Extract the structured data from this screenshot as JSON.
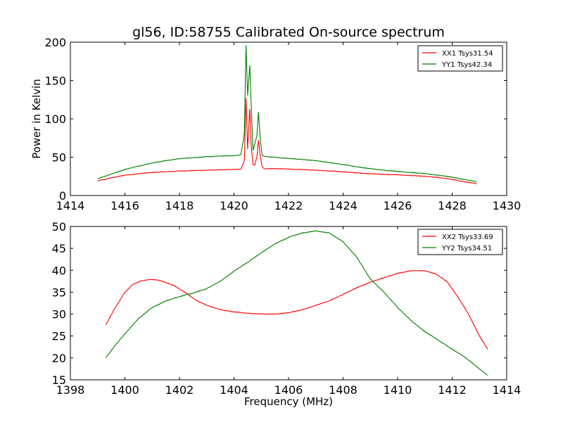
{
  "figure": {
    "title": "gl56, ID:58755 Calibrated On-source spectrum",
    "ylabel": "Power in Kelvin",
    "xlabel": "Frequency (MHz)"
  },
  "chart_data": [
    {
      "type": "line",
      "title": "gl56, ID:58755 Calibrated On-source spectrum",
      "xlabel": "",
      "ylabel": "Power in Kelvin",
      "xlim": [
        1414,
        1430
      ],
      "ylim": [
        0,
        200
      ],
      "xticks": [
        1414,
        1416,
        1418,
        1420,
        1422,
        1424,
        1426,
        1428,
        1430
      ],
      "yticks": [
        0,
        50,
        100,
        150,
        200
      ],
      "grid": false,
      "legend_position": "top-right",
      "series": [
        {
          "name": "XX1 Tsys31.54",
          "color": "#ff0000",
          "x": [
            1415.0,
            1415.5,
            1416.0,
            1416.5,
            1417.0,
            1417.5,
            1418.0,
            1418.5,
            1419.0,
            1419.5,
            1420.0,
            1420.25,
            1420.38,
            1420.44,
            1420.5,
            1420.54,
            1420.58,
            1420.63,
            1420.7,
            1420.76,
            1420.84,
            1420.9,
            1420.96,
            1421.03,
            1421.1,
            1421.3,
            1421.6,
            1422.0,
            1422.5,
            1423.0,
            1423.5,
            1424.0,
            1424.5,
            1425.0,
            1425.5,
            1426.0,
            1426.5,
            1427.0,
            1427.5,
            1428.0,
            1428.5,
            1428.9
          ],
          "y": [
            19,
            23,
            26.5,
            28.5,
            30,
            31,
            32,
            32.5,
            33,
            33.5,
            34,
            34.5,
            45,
            128,
            60,
            88,
            113,
            65,
            40,
            40,
            50,
            73,
            52,
            38,
            35,
            35,
            35,
            34.5,
            34,
            33,
            32,
            31,
            29.5,
            28.5,
            27.5,
            27,
            26,
            25,
            23.5,
            21,
            17.5,
            15.5
          ]
        },
        {
          "name": "YY1 Tsys42.34",
          "color": "#008000",
          "x": [
            1415.0,
            1415.5,
            1416.0,
            1416.5,
            1417.0,
            1417.5,
            1418.0,
            1418.5,
            1419.0,
            1419.5,
            1420.0,
            1420.25,
            1420.38,
            1420.44,
            1420.5,
            1420.54,
            1420.58,
            1420.63,
            1420.7,
            1420.76,
            1420.84,
            1420.9,
            1420.96,
            1421.03,
            1421.1,
            1421.3,
            1421.6,
            1422.0,
            1422.5,
            1423.0,
            1423.5,
            1424.0,
            1424.5,
            1425.0,
            1425.5,
            1426.0,
            1426.5,
            1427.0,
            1427.5,
            1428.0,
            1428.5,
            1428.9
          ],
          "y": [
            22,
            28,
            34,
            38.5,
            42.5,
            45.5,
            48,
            49.5,
            50.5,
            51.5,
            52,
            53,
            80,
            197,
            130,
            150,
            170,
            118,
            58,
            67,
            78,
            110,
            75,
            53,
            51,
            50.5,
            49.5,
            48.5,
            47,
            45.5,
            43,
            40.5,
            37.5,
            35,
            33,
            31.5,
            30,
            28.5,
            26.5,
            24,
            20.5,
            18
          ]
        }
      ]
    },
    {
      "type": "line",
      "title": "",
      "xlabel": "Frequency (MHz)",
      "ylabel": "",
      "xlim": [
        1398,
        1414
      ],
      "ylim": [
        15,
        50
      ],
      "xticks": [
        1398,
        1400,
        1402,
        1404,
        1406,
        1408,
        1410,
        1412,
        1414
      ],
      "yticks": [
        15,
        20,
        25,
        30,
        35,
        40,
        45,
        50
      ],
      "grid": false,
      "legend_position": "top-right",
      "series": [
        {
          "name": "XX2 Tsys33.69",
          "color": "#ff0000",
          "x": [
            1399.3,
            1399.6,
            1400.0,
            1400.3,
            1400.6,
            1400.9,
            1401.2,
            1401.5,
            1401.8,
            1402.2,
            1402.6,
            1403.0,
            1403.5,
            1404.0,
            1404.5,
            1405.0,
            1405.5,
            1406.0,
            1406.5,
            1407.0,
            1407.5,
            1408.0,
            1408.5,
            1409.0,
            1409.5,
            1410.0,
            1410.5,
            1411.0,
            1411.4,
            1411.8,
            1412.2,
            1412.6,
            1413.0,
            1413.3
          ],
          "y": [
            27.5,
            31,
            35,
            36.8,
            37.6,
            37.9,
            37.8,
            37.2,
            36.5,
            35,
            33.2,
            32,
            31,
            30.5,
            30.2,
            30,
            30,
            30.3,
            31,
            32,
            33,
            34.5,
            36,
            37.3,
            38.3,
            39.3,
            39.9,
            39.9,
            39.2,
            37.5,
            34,
            30,
            25,
            22
          ]
        },
        {
          "name": "YY2 Tsys34.51",
          "color": "#008000",
          "x": [
            1399.3,
            1399.6,
            1400.0,
            1400.5,
            1401.0,
            1401.5,
            1402.0,
            1402.5,
            1403.0,
            1403.5,
            1404.0,
            1404.5,
            1405.0,
            1405.5,
            1406.0,
            1406.5,
            1407.0,
            1407.5,
            1408.0,
            1408.5,
            1409.0,
            1409.5,
            1410.0,
            1410.5,
            1411.0,
            1411.5,
            1412.0,
            1412.5,
            1413.0,
            1413.3
          ],
          "y": [
            20,
            22.5,
            25.5,
            29,
            31.5,
            33,
            34,
            34.8,
            35.8,
            37.5,
            39.8,
            41.8,
            44,
            46,
            47.5,
            48.5,
            49,
            48.5,
            46.5,
            43,
            38,
            35,
            31.5,
            28.5,
            26,
            24,
            22,
            20,
            17.5,
            16
          ]
        }
      ]
    }
  ]
}
